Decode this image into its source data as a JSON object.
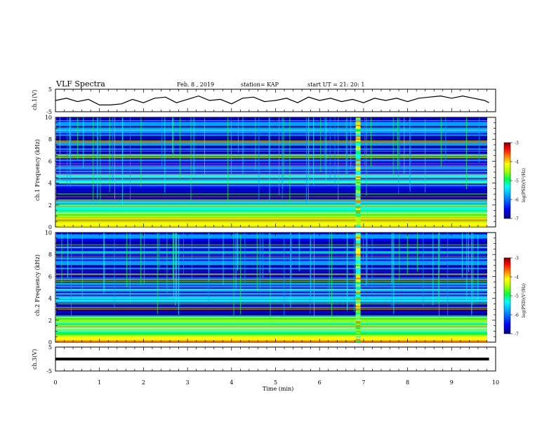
{
  "header": {
    "title": "VLF Spectra",
    "date": "Feb. 8 , 2019",
    "station": "station= KAP",
    "start": "start UT = 21: 20: 1"
  },
  "colors": {
    "axis": "#000000",
    "colormap": [
      "#000080",
      "#0000ff",
      "#00a0ff",
      "#00ffff",
      "#00ff40",
      "#a0ff00",
      "#ffff00",
      "#ff8000",
      "#ff0000",
      "#800000"
    ]
  },
  "chart_data": [
    {
      "type": "line",
      "panel": "top",
      "ylabel": "ch.1(V)",
      "ylim": [
        -5,
        5
      ],
      "yticks": [
        "5",
        "-5"
      ],
      "xlim": [
        0,
        10
      ],
      "series": [
        {
          "x": [
            0,
            0.25,
            0.5,
            0.75,
            1.0,
            1.25,
            1.5,
            1.75,
            2.0,
            2.25,
            2.5,
            2.75,
            3.0,
            3.25,
            3.5,
            3.75,
            4.0,
            4.25,
            4.5,
            4.75,
            5.0,
            5.25,
            5.5,
            5.75,
            6.0,
            6.25,
            6.5,
            6.75,
            7.0,
            7.25,
            7.5,
            7.75,
            8.0,
            8.25,
            8.5,
            8.75,
            9.0,
            9.25,
            9.5,
            9.75,
            9.85
          ],
          "values": [
            0,
            1,
            -0.5,
            0.5,
            -2,
            -2,
            -1.5,
            0.5,
            -1,
            1,
            1.5,
            -1,
            0.5,
            2,
            0,
            0.5,
            -1.5,
            1,
            1.5,
            -0.5,
            0,
            1,
            -1,
            1.5,
            0,
            1,
            -0.5,
            0.5,
            -1,
            1,
            0,
            1,
            -0.5,
            1,
            1.5,
            2,
            1,
            2,
            1,
            0,
            -1
          ]
        }
      ]
    },
    {
      "type": "heatmap",
      "panel": "ch1",
      "ylabel": "ch.1 Frequency (kHz)",
      "ylim": [
        0,
        10
      ],
      "yticks": [
        "0",
        "2",
        "4",
        "6",
        "8",
        "10"
      ],
      "xlim": [
        0,
        10
      ],
      "colorbar": {
        "label": "log(PSD)(V²/Hz)",
        "range": [
          -7,
          -3
        ],
        "ticks": [
          "-3",
          "-4",
          "-5",
          "-6",
          "-7"
        ]
      }
    },
    {
      "type": "heatmap",
      "panel": "ch2",
      "ylabel": "ch.2 Frequency (kHz)",
      "ylim": [
        0,
        10
      ],
      "yticks": [
        "0",
        "2",
        "4",
        "6",
        "8",
        "10"
      ],
      "xlim": [
        0,
        10
      ],
      "colorbar": {
        "label": "log(PSD)(V²/Hz)",
        "range": [
          -7,
          -3
        ],
        "ticks": [
          "-3",
          "-4",
          "-5",
          "-6",
          "-7"
        ]
      }
    },
    {
      "type": "line",
      "panel": "bottom",
      "ylabel": "ch.3(V)",
      "ylim": [
        -5,
        5
      ],
      "yticks": [
        "5",
        "-5"
      ],
      "xlim": [
        0,
        10
      ],
      "series": [
        {
          "x": [
            0,
            9.85
          ],
          "values": [
            0,
            0
          ]
        }
      ]
    }
  ],
  "xaxis": {
    "label": "Time (min)",
    "ticks": [
      "0",
      "1",
      "2",
      "3",
      "4",
      "5",
      "6",
      "7",
      "8",
      "9",
      "10"
    ]
  }
}
